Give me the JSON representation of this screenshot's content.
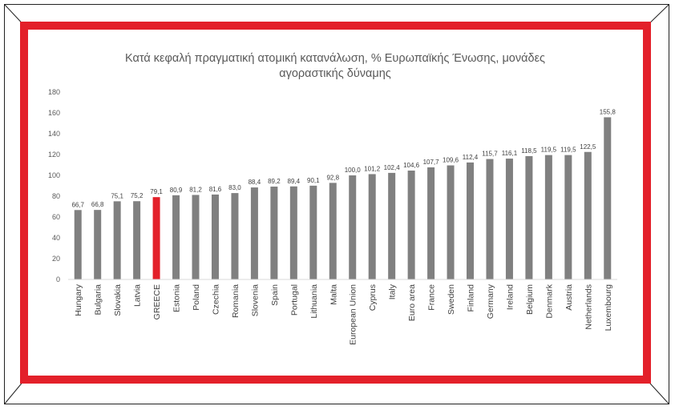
{
  "chart_data": {
    "type": "bar",
    "title_lines": [
      "Κατά κεφαλή πραγματική ατομική κατανάλωση, % Ευρωπαϊκής Ένωσης, μονάδες",
      "αγοραστικής δύναμης"
    ],
    "categories": [
      "Hungary",
      "Bulgaria",
      "Slovakia",
      "Latvia",
      "GREECE",
      "Estonia",
      "Poland",
      "Czechia",
      "Romania",
      "Slovenia",
      "Spain",
      "Portugal",
      "Lithuania",
      "Malta",
      "European Union",
      "Cyprus",
      "Italy",
      "Euro area",
      "France",
      "Sweden",
      "Finland",
      "Germany",
      "Ireland",
      "Belgium",
      "Denmark",
      "Austria",
      "Netherlands",
      "Luxembourg"
    ],
    "values": [
      66.7,
      66.8,
      75.1,
      75.2,
      79.1,
      80.9,
      81.2,
      81.6,
      83.0,
      88.4,
      89.2,
      89.4,
      90.1,
      92.8,
      100.0,
      101.2,
      102.4,
      104.6,
      107.7,
      109.6,
      112.4,
      115.7,
      116.1,
      118.5,
      119.5,
      119.5,
      122.5,
      155.8
    ],
    "value_labels": [
      "66,7",
      "66,8",
      "75,1",
      "75,2",
      "79,1",
      "80,9",
      "81,2",
      "81,6",
      "83,0",
      "88,4",
      "89,2",
      "89,4",
      "90,1",
      "92,8",
      "100,0",
      "101,2",
      "102,4",
      "104,6",
      "107,7",
      "109,6",
      "112,4",
      "115,7",
      "116,1",
      "118,5",
      "119,5",
      "119,5",
      "122,5",
      "155,8"
    ],
    "highlight_category": "GREECE",
    "ylim": [
      0,
      180
    ],
    "yticks": [
      "0",
      "20",
      "40",
      "60",
      "80",
      "100",
      "120",
      "140",
      "160",
      "180"
    ],
    "xlabel": "",
    "ylabel": "",
    "grid": false,
    "colors": {
      "bar": "#808080",
      "highlight": "#e3202a",
      "frame": "#e3202a"
    }
  }
}
